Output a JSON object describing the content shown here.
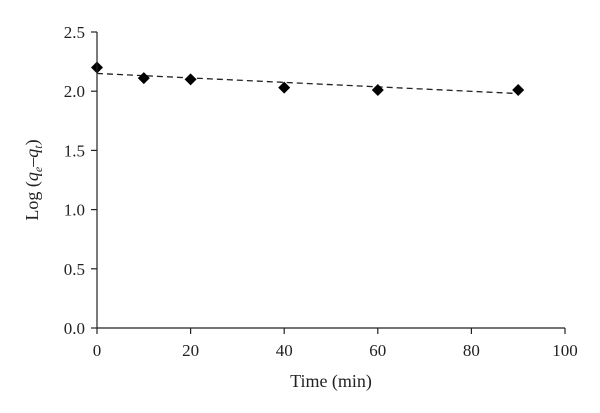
{
  "chart_data": {
    "type": "scatter",
    "xlabel": "Time (min)",
    "ylabel_parts": {
      "prefix": "Log (",
      "q1": "q",
      "sub1": "e",
      "dash": "–",
      "q2": "q",
      "sub2": "t",
      "suffix": ")"
    },
    "xlim": [
      0,
      100
    ],
    "ylim": [
      0.0,
      2.5
    ],
    "x_ticks": [
      0,
      20,
      40,
      60,
      80,
      100
    ],
    "x_tick_labels": [
      "0",
      "20",
      "40",
      "60",
      "80",
      "100"
    ],
    "y_ticks": [
      0.0,
      0.5,
      1.0,
      1.5,
      2.0,
      2.5
    ],
    "y_tick_labels": [
      "0.0",
      "0.5",
      "1.0",
      "1.5",
      "2.0",
      "2.5"
    ],
    "grid": false,
    "marker": "diamond",
    "series": [
      {
        "x": [
          0,
          10,
          20,
          40,
          60,
          90
        ],
        "y": [
          2.2,
          2.11,
          2.1,
          2.03,
          2.01,
          2.01
        ]
      }
    ],
    "trendline": {
      "style": "dashed",
      "x": [
        0,
        90
      ],
      "y": [
        2.15,
        1.98
      ]
    }
  }
}
